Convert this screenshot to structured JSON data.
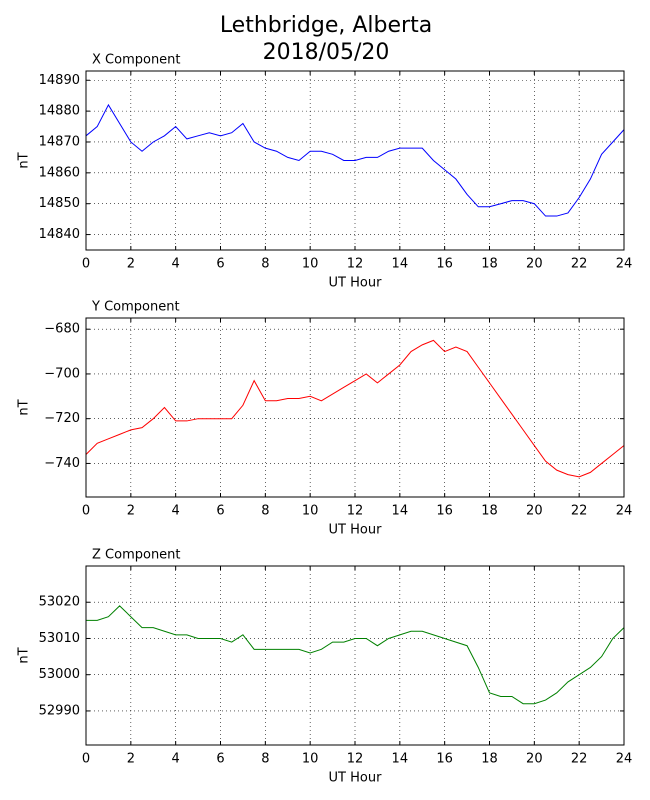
{
  "title": [
    "Lethbridge, Alberta",
    "2018/05/20"
  ],
  "chart_data": [
    {
      "type": "line",
      "title": "X Component",
      "xlabel": "UT Hour",
      "ylabel": "nT",
      "x": [
        0,
        0.5,
        1,
        1.5,
        2,
        2.5,
        3,
        3.5,
        4,
        4.5,
        5,
        5.5,
        6,
        6.5,
        7,
        7.5,
        8,
        8.5,
        9,
        9.5,
        10,
        10.5,
        11,
        11.5,
        12,
        12.5,
        13,
        13.5,
        14,
        14.5,
        15,
        15.5,
        16,
        16.5,
        17,
        17.5,
        18,
        18.5,
        19,
        19.5,
        20,
        20.5,
        21,
        21.5,
        22,
        22.5,
        23,
        23.5,
        24
      ],
      "series": [
        {
          "name": "X",
          "color": "#0000ff",
          "values": [
            14872,
            14875,
            14882,
            14876,
            14870,
            14867,
            14870,
            14872,
            14875,
            14871,
            14872,
            14873,
            14872,
            14873,
            14876,
            14870,
            14868,
            14867,
            14865,
            14864,
            14867,
            14867,
            14866,
            14864,
            14864,
            14865,
            14865,
            14867,
            14868,
            14868,
            14868,
            14864,
            14861,
            14858,
            14853,
            14849,
            14849,
            14850,
            14851,
            14851,
            14850,
            14846,
            14846,
            14847,
            14852,
            14858,
            14866,
            14870,
            14874
          ]
        }
      ],
      "xlim": [
        0,
        24
      ],
      "xticks": [
        0,
        2,
        4,
        6,
        8,
        10,
        12,
        14,
        16,
        18,
        20,
        22,
        24
      ],
      "ylim": [
        14835,
        14893
      ],
      "yticks": [
        14840,
        14850,
        14860,
        14870,
        14880,
        14890
      ],
      "grid": true
    },
    {
      "type": "line",
      "title": "Y Component",
      "xlabel": "UT Hour",
      "ylabel": "nT",
      "x": [
        0,
        0.5,
        1,
        1.5,
        2,
        2.5,
        3,
        3.5,
        4,
        4.5,
        5,
        5.5,
        6,
        6.5,
        7,
        7.5,
        8,
        8.5,
        9,
        9.5,
        10,
        10.5,
        11,
        11.5,
        12,
        12.5,
        13,
        13.5,
        14,
        14.5,
        15,
        15.5,
        16,
        16.5,
        17,
        17.5,
        18,
        18.5,
        19,
        19.5,
        20,
        20.5,
        21,
        21.5,
        22,
        22.5,
        23,
        23.5,
        24
      ],
      "series": [
        {
          "name": "Y",
          "color": "#ff0000",
          "values": [
            -736,
            -731,
            -729,
            -727,
            -725,
            -724,
            -720,
            -715,
            -721,
            -721,
            -720,
            -720,
            -720,
            -720,
            -714,
            -703,
            -712,
            -712,
            -711,
            -711,
            -710,
            -712,
            -709,
            -706,
            -703,
            -700,
            -704,
            -700,
            -696,
            -690,
            -687,
            -685,
            -690,
            -688,
            -690,
            -697,
            -704,
            -711,
            -718,
            -725,
            -732,
            -739,
            -743,
            -745,
            -746,
            -744,
            -740,
            -736,
            -732
          ]
        }
      ],
      "xlim": [
        0,
        24
      ],
      "xticks": [
        0,
        2,
        4,
        6,
        8,
        10,
        12,
        14,
        16,
        18,
        20,
        22,
        24
      ],
      "ylim": [
        -755,
        -675
      ],
      "yticks": [
        {
          "value": -740,
          "label": "−740"
        },
        {
          "value": -720,
          "label": "−720"
        },
        {
          "value": -700,
          "label": "−700"
        },
        {
          "value": -680,
          "label": "−680"
        }
      ],
      "grid": true
    },
    {
      "type": "line",
      "title": "Z Component",
      "xlabel": "UT Hour",
      "ylabel": "nT",
      "x": [
        0,
        0.5,
        1,
        1.5,
        2,
        2.5,
        3,
        3.5,
        4,
        4.5,
        5,
        5.5,
        6,
        6.5,
        7,
        7.5,
        8,
        8.5,
        9,
        9.5,
        10,
        10.5,
        11,
        11.5,
        12,
        12.5,
        13,
        13.5,
        14,
        14.5,
        15,
        15.5,
        16,
        16.5,
        17,
        17.5,
        18,
        18.5,
        19,
        19.5,
        20,
        20.5,
        21,
        21.5,
        22,
        22.5,
        23,
        23.5,
        24
      ],
      "series": [
        {
          "name": "Z",
          "color": "#008000",
          "values": [
            53015,
            53015,
            53016,
            53019,
            53016,
            53013,
            53013,
            53012,
            53011,
            53011,
            53010,
            53010,
            53010,
            53009,
            53011,
            53007,
            53007,
            53007,
            53007,
            53007,
            53006,
            53007,
            53009,
            53009,
            53010,
            53010,
            53008,
            53010,
            53011,
            53012,
            53012,
            53011,
            53010,
            53009,
            53008,
            53002,
            52995,
            52994,
            52994,
            52992,
            52992,
            52993,
            52995,
            52998,
            53000,
            53002,
            53005,
            53010,
            53013
          ]
        }
      ],
      "xlim": [
        0,
        24
      ],
      "xticks": [
        0,
        2,
        4,
        6,
        8,
        10,
        12,
        14,
        16,
        18,
        20,
        22,
        24
      ],
      "ylim": [
        52980.6,
        53030
      ],
      "yticks": [
        52990,
        53000,
        53010,
        53020
      ],
      "grid": true
    }
  ]
}
